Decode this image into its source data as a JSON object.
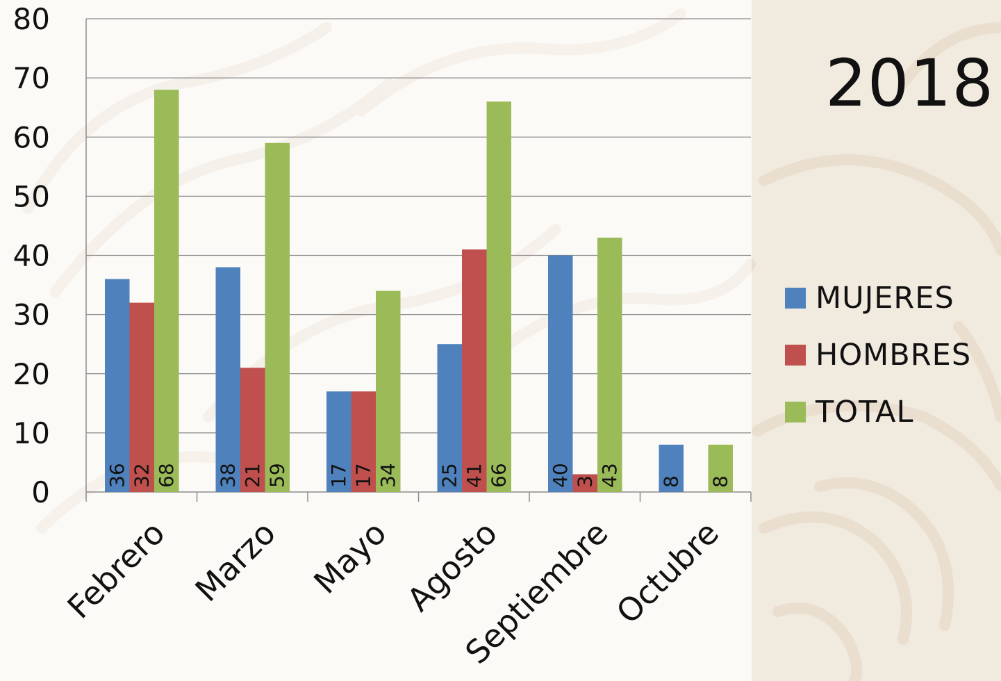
{
  "title": "2018",
  "chart_data": {
    "type": "bar",
    "categories": [
      "Febrero",
      "Marzo",
      "Mayo",
      "Agosto",
      "Septiembre",
      "Octubre"
    ],
    "series": [
      {
        "name": "MUJERES",
        "color": "#4f81bd",
        "values": [
          36,
          38,
          17,
          25,
          40,
          8
        ]
      },
      {
        "name": "HOMBRES",
        "color": "#c0504d",
        "values": [
          32,
          21,
          17,
          41,
          3,
          null
        ]
      },
      {
        "name": "TOTAL",
        "color": "#9bbb59",
        "values": [
          68,
          59,
          34,
          66,
          43,
          8
        ]
      }
    ],
    "ylim": [
      0,
      80
    ],
    "yticks": [
      0,
      10,
      20,
      30,
      40,
      50,
      60,
      70,
      80
    ],
    "grid": true,
    "legend_position": "right",
    "data_labels": "inside-base-rotated"
  }
}
